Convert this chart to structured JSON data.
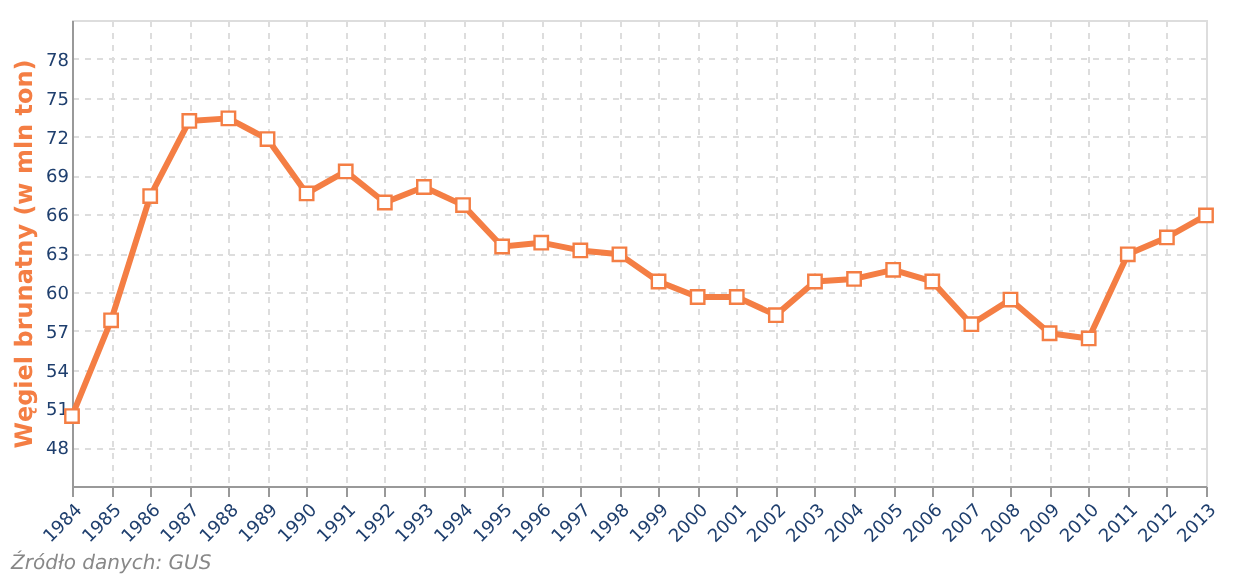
{
  "chart_data": {
    "type": "line",
    "ylabel": "Węgiel brunatny (w mln ton)",
    "categories": [
      "1984",
      "1985",
      "1986",
      "1987",
      "1988",
      "1989",
      "1990",
      "1991",
      "1992",
      "1993",
      "1994",
      "1995",
      "1996",
      "1997",
      "1998",
      "1999",
      "2000",
      "2001",
      "2002",
      "2003",
      "2004",
      "2005",
      "2006",
      "2007",
      "2008",
      "2009",
      "2010",
      "2011",
      "2012",
      "2013"
    ],
    "series": [
      {
        "color": "#f47e44",
        "values": [
          50.4,
          57.8,
          67.4,
          73.2,
          73.4,
          71.8,
          67.6,
          69.3,
          66.9,
          68.1,
          66.7,
          63.5,
          63.8,
          63.2,
          62.9,
          60.8,
          59.6,
          59.6,
          58.2,
          60.8,
          61.0,
          61.7,
          60.8,
          57.5,
          59.4,
          56.8,
          56.4,
          62.9,
          64.2,
          65.9
        ]
      }
    ],
    "ylim": [
      45,
      81
    ],
    "yticks": [
      48,
      51,
      54,
      57,
      60,
      63,
      66,
      69,
      72,
      75,
      78
    ],
    "grid": true,
    "marker": "square",
    "line_style": "solid",
    "annotations": [
      "Źródło danych: GUS"
    ]
  }
}
